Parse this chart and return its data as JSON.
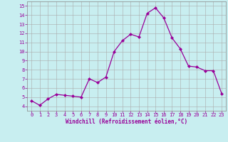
{
  "x": [
    0,
    1,
    2,
    3,
    4,
    5,
    6,
    7,
    8,
    9,
    10,
    11,
    12,
    13,
    14,
    15,
    16,
    17,
    18,
    19,
    20,
    21,
    22,
    23
  ],
  "y": [
    4.6,
    4.1,
    4.8,
    5.3,
    5.2,
    5.1,
    5.0,
    7.0,
    6.6,
    7.2,
    10.0,
    11.2,
    11.9,
    11.6,
    14.2,
    14.8,
    13.7,
    11.5,
    10.3,
    8.4,
    8.3,
    7.9,
    7.9,
    5.4
  ],
  "line_color": "#990099",
  "marker": "D",
  "marker_size": 2,
  "bg_color": "#c8eef0",
  "grid_color": "#aaaaaa",
  "xlabel": "Windchill (Refroidissement éolien,°C)",
  "xlabel_color": "#990099",
  "tick_color": "#990099",
  "ylim": [
    3.5,
    15.5
  ],
  "xlim": [
    -0.5,
    23.5
  ],
  "yticks": [
    4,
    5,
    6,
    7,
    8,
    9,
    10,
    11,
    12,
    13,
    14,
    15
  ],
  "xticks": [
    0,
    1,
    2,
    3,
    4,
    5,
    6,
    7,
    8,
    9,
    10,
    11,
    12,
    13,
    14,
    15,
    16,
    17,
    18,
    19,
    20,
    21,
    22,
    23
  ]
}
